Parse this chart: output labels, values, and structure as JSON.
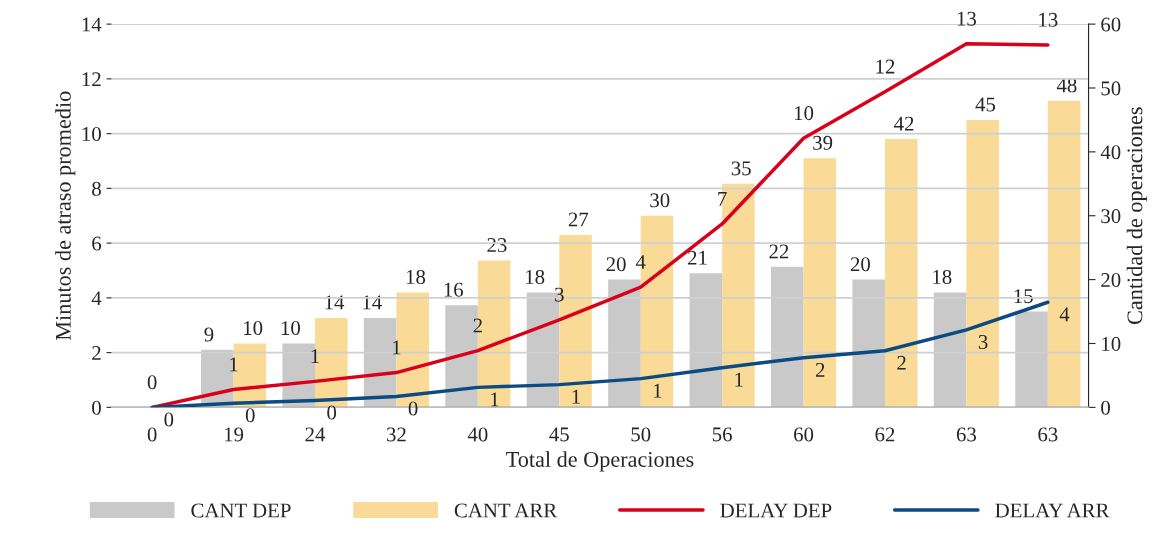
{
  "chart_data": {
    "type": "bar",
    "xlabel": "Total de Operaciones",
    "ylabel": "Minutos de atraso promedio",
    "y2label": "Cantidad de operaciones",
    "categories": [
      "0",
      "19",
      "24",
      "32",
      "40",
      "45",
      "50",
      "56",
      "60",
      "62",
      "63",
      "63"
    ],
    "ylim": [
      0,
      14
    ],
    "yticks": [
      0,
      2,
      4,
      6,
      8,
      10,
      12,
      14
    ],
    "y2lim": [
      0,
      60
    ],
    "y2ticks": [
      0,
      10,
      20,
      30,
      40,
      50,
      60
    ],
    "grid": "y",
    "legend": "bottom",
    "series": [
      {
        "name": "CANT DEP",
        "axis": "y2",
        "color": "#c9c9c9",
        "values": [
          0,
          9,
          10,
          14,
          16,
          18,
          20,
          21,
          22,
          20,
          18,
          15
        ],
        "value_labels": [
          null,
          "9",
          "10",
          "14",
          "16",
          "18",
          "20",
          "21",
          "22",
          "20",
          "18",
          "15"
        ]
      },
      {
        "name": "CANT ARR",
        "axis": "y2",
        "color": "#f9db97",
        "values": [
          0,
          10,
          14,
          18,
          23,
          27,
          30,
          35,
          39,
          42,
          45,
          48
        ],
        "value_labels": [
          null,
          "10",
          "14",
          "18",
          "23",
          "27",
          "30",
          "35",
          "39",
          "42",
          "45",
          "48"
        ]
      },
      {
        "name": "DELAY DEP",
        "type": "line",
        "axis": "y",
        "color": "#d9001b",
        "values": [
          0,
          0.65,
          0.95,
          1.27,
          2.07,
          3.2,
          4.39,
          6.7,
          9.83,
          11.53,
          13.28,
          13.24
        ],
        "value_labels": [
          "0",
          "1",
          "1",
          "1",
          "2",
          "3",
          "4",
          "7",
          "10",
          "12",
          "13",
          "13"
        ]
      },
      {
        "name": "DELAY ARR",
        "type": "line",
        "axis": "y",
        "color": "#0b4a82",
        "values": [
          0,
          0.15,
          0.25,
          0.4,
          0.73,
          0.83,
          1.05,
          1.45,
          1.81,
          2.07,
          2.83,
          3.84
        ],
        "value_labels": [
          "0",
          "0",
          "0",
          "0",
          "1",
          "1",
          "1",
          "1",
          "2",
          "2",
          "3",
          "4"
        ]
      }
    ]
  }
}
